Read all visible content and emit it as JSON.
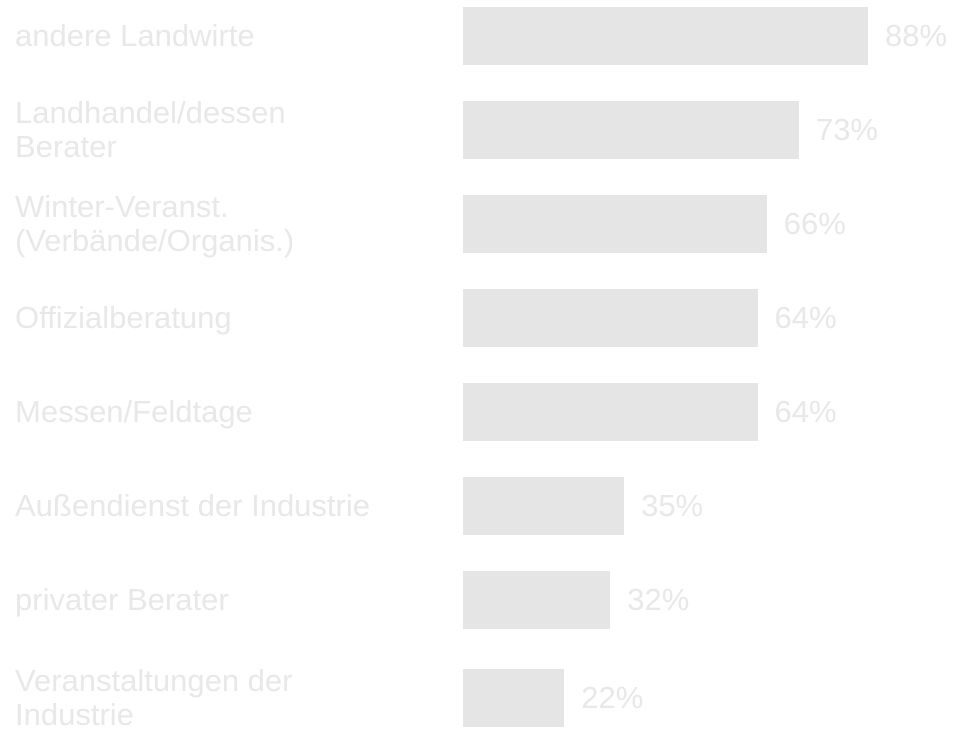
{
  "chart_data": {
    "type": "bar",
    "orientation": "horizontal",
    "categories": [
      "andere Landwirte",
      "Landhandel/dessen\nBerater",
      "Winter-Veranst.\n(Verbände/Organis.)",
      "Offizialberatung",
      "Messen/Feldtage",
      "Außendienst der Industrie",
      "privater Berater",
      "Veranstaltungen der\nIndustrie"
    ],
    "values": [
      88,
      73,
      66,
      64,
      64,
      35,
      32,
      22
    ],
    "value_labels": [
      "88%",
      "73%",
      "66%",
      "64%",
      "64%",
      "35%",
      "32%",
      "22%"
    ],
    "color": "#e5e5e5"
  }
}
